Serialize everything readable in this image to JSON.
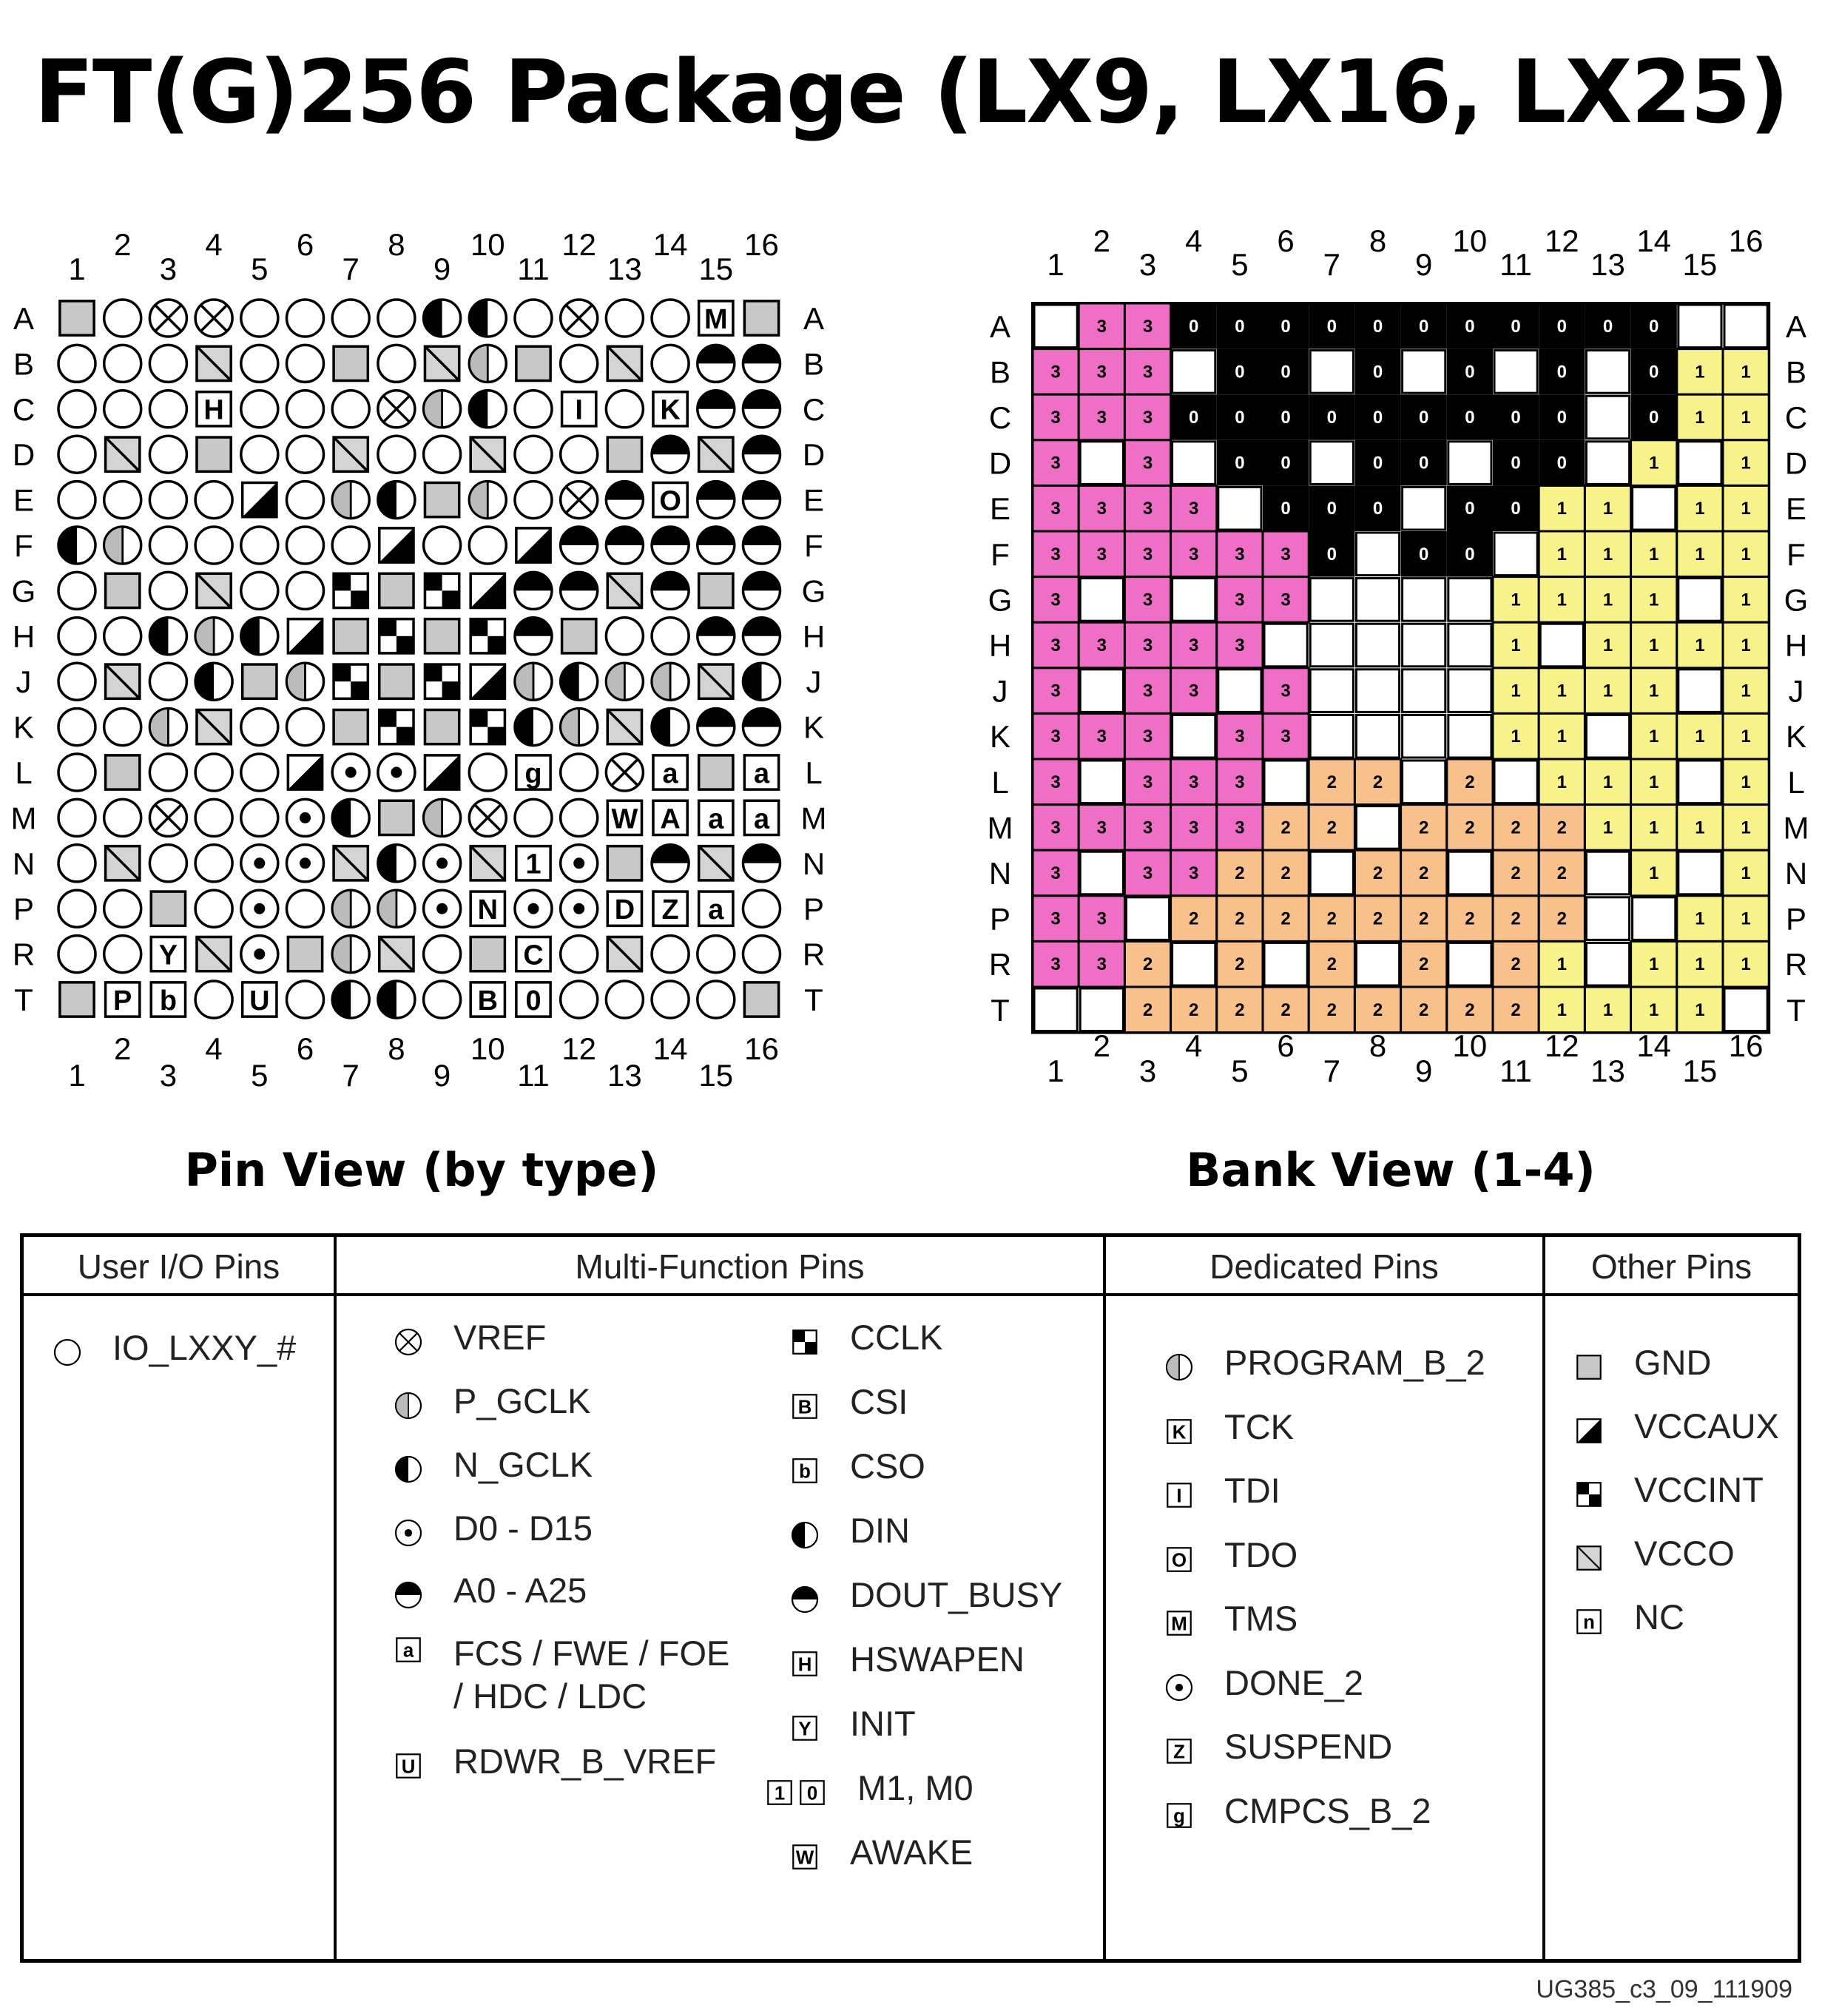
{
  "title": "FT(G)256 Package (LX9, LX16, LX25)",
  "rows": [
    "A",
    "B",
    "C",
    "D",
    "E",
    "F",
    "G",
    "H",
    "J",
    "K",
    "L",
    "M",
    "N",
    "P",
    "R",
    "T"
  ],
  "cols": [
    "1",
    "2",
    "3",
    "4",
    "5",
    "6",
    "7",
    "8",
    "9",
    "10",
    "11",
    "12",
    "13",
    "14",
    "15",
    "16"
  ],
  "pin_view": {
    "caption": "Pin View (by type)",
    "grid": [
      "G o X X o o o o N N o X o o M G",
      "o o o V o o G o V P G o V o A A",
      "o o o H o o o X P N o I o K A A",
      "o V o G o o V o o V o o G A V A",
      "o o o o Q o P N G P o X A O A A",
      "N P o o o o o Q o o Q A A A A A",
      "o G o V o o C G C Q A A V A G A",
      "o o N P N Q G C G C A G o o A A",
      "o V o N G P C G C Q P N P P V N",
      "o o P V o o G C G C N P V N A A",
      "o G o o o Q D D Q o g o X a G a",
      "o o X o o D N G P X o o W Ad a a",
      "o V o o D D V N D V 1 D G A V A",
      "o o G o D o P P D Nd D D Dn Z a o",
      "o o Y V D G P V o G Cc o V o o o",
      "G Pp b o U o N N o B 0 o o o o G"
    ]
  },
  "bank_view": {
    "caption": "Bank View (1-4)",
    "grid": [
      "- 3 3 0 0 0 0 0 0 0 0 0 0 0 - -",
      "3 3 3 - 0 0 - 0 - 0 - 0 - 0 1 1",
      "3 3 3 0 0 0 0 0 0 0 0 0 - 0 1 1",
      "3 - 3 - 0 0 - 0 0 - 0 0 - 1 - 1",
      "3 3 3 3 - 0 0 0 - 0 0 1 1 - 1 1",
      "3 3 3 3 3 3 0 - 0 0 - 1 1 1 1 1",
      "3 - 3 - 3 3 - - - - 1 1 1 1 - 1",
      "3 3 3 3 3 - - - - - 1 - 1 1 1 1",
      "3 - 3 3 - 3 - - - - 1 1 1 1 - 1",
      "3 3 3 - 3 3 - - - - 1 1 - 1 1 1",
      "3 - 3 3 3 - 2 2 - 2 - 1 1 1 - 1",
      "3 3 3 3 3 2 2 - 2 2 2 2 1 1 1 1",
      "3 - 3 3 2 2 - 2 2 - 2 2 - 1 - 1",
      "3 3 - 2 2 2 2 2 2 2 2 2 - - 1 1",
      "3 3 2 - 2 - 2 - 2 - 2 1 - 1 1 1",
      "- - 2 2 2 2 2 2 2 2 2 1 1 1 1 -"
    ],
    "colors": {
      "0": "#000000",
      "1": "#f7f38a",
      "2": "#f8c08a",
      "3": "#ef6fc6",
      "-": "#ffffff"
    }
  },
  "legend": {
    "user_io": {
      "header": "User I/O Pins",
      "items": [
        {
          "sym": "circle",
          "label": "IO_LXXY_#"
        }
      ]
    },
    "multi_function": {
      "header": "Multi-Function Pins",
      "left": [
        {
          "sym": "vref",
          "label": "VREF"
        },
        {
          "sym": "pgclk",
          "label": "P_GCLK"
        },
        {
          "sym": "ngclk",
          "label": "N_GCLK"
        },
        {
          "sym": "data",
          "label": "D0 - D15"
        },
        {
          "sym": "addr",
          "label": "A0 - A25"
        },
        {
          "sym": "letter",
          "char": "a",
          "label": "FCS / FWE / FOE",
          "label2": "/ HDC / LDC"
        },
        {
          "sym": "letter",
          "char": "U",
          "label": "RDWR_B_VREF"
        }
      ],
      "right": [
        {
          "sym": "letter",
          "char": "C",
          "label": "CCLK"
        },
        {
          "sym": "letter",
          "char": "B",
          "label": "CSI"
        },
        {
          "sym": "letter",
          "char": "b",
          "label": "CSO"
        },
        {
          "sym": "letter",
          "char": "N",
          "label": "DIN"
        },
        {
          "sym": "letter",
          "char": "A",
          "label": "DOUT_BUSY"
        },
        {
          "sym": "letter",
          "char": "H",
          "label": "HSWAPEN"
        },
        {
          "sym": "letter",
          "char": "Y",
          "label": "INIT"
        },
        {
          "sym": "letter2",
          "char": "1",
          "char2": "0",
          "label": "M1, M0"
        },
        {
          "sym": "letter",
          "char": "W",
          "label": "AWAKE"
        }
      ]
    },
    "dedicated": {
      "header": "Dedicated Pins",
      "items": [
        {
          "sym": "letter",
          "char": "P",
          "label": "PROGRAM_B_2"
        },
        {
          "sym": "letter",
          "char": "K",
          "label": "TCK"
        },
        {
          "sym": "letter",
          "char": "I",
          "label": "TDI"
        },
        {
          "sym": "letter",
          "char": "O",
          "label": "TDO"
        },
        {
          "sym": "letter",
          "char": "M",
          "label": "TMS"
        },
        {
          "sym": "letter",
          "char": "D",
          "label": "DONE_2"
        },
        {
          "sym": "letter",
          "char": "Z",
          "label": "SUSPEND"
        },
        {
          "sym": "letter",
          "char": "g",
          "label": "CMPCS_B_2"
        }
      ]
    },
    "other": {
      "header": "Other Pins",
      "items": [
        {
          "sym": "gnd",
          "label": "GND"
        },
        {
          "sym": "vccaux",
          "label": "VCCAUX"
        },
        {
          "sym": "vccint",
          "label": "VCCINT"
        },
        {
          "sym": "vcco",
          "label": "VCCO"
        },
        {
          "sym": "letter",
          "char": "n",
          "label": "NC"
        }
      ]
    }
  },
  "doc_id": "UG385_c3_09_111909"
}
